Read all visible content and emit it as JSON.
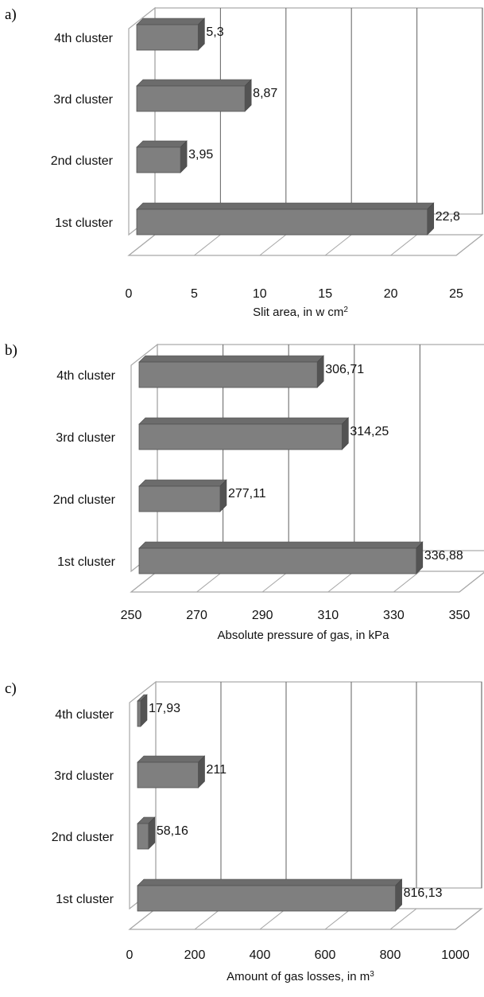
{
  "chart_data": [
    {
      "type": "bar",
      "orientation": "horizontal",
      "panel_label": "a)",
      "categories": [
        "1st cluster",
        "2nd cluster",
        "3rd cluster",
        "4th cluster"
      ],
      "values": [
        22.8,
        3.95,
        8.87,
        5.3
      ],
      "data_labels": [
        "22,8",
        "3,95",
        "8,87",
        "5,3"
      ],
      "xlabel": "Slit area, in w cm",
      "xlabel_sup": "2",
      "xlim": [
        0,
        25
      ],
      "ticks": [
        0,
        5,
        10,
        15,
        20,
        25
      ],
      "tick_labels": [
        "0",
        "5",
        "10",
        "15",
        "20",
        "25"
      ],
      "grid": true,
      "bar_color": "#7f7f7f"
    },
    {
      "type": "bar",
      "orientation": "horizontal",
      "panel_label": "b)",
      "categories": [
        "1st cluster",
        "2nd cluster",
        "3rd cluster",
        "4th cluster"
      ],
      "values": [
        336.88,
        277.11,
        314.25,
        306.71
      ],
      "data_labels": [
        "336,88",
        "277,11",
        "314,25",
        "306,71"
      ],
      "xlabel": "Absolute pressure of gas, in kPa",
      "xlabel_sup": "",
      "xlim": [
        250,
        350
      ],
      "ticks": [
        250,
        270,
        290,
        310,
        330,
        350
      ],
      "tick_labels": [
        "250",
        "270",
        "290",
        "310",
        "330",
        "350"
      ],
      "grid": true,
      "bar_color": "#7f7f7f"
    },
    {
      "type": "bar",
      "orientation": "horizontal",
      "panel_label": "c)",
      "categories": [
        "1st cluster",
        "2nd cluster",
        "3rd cluster",
        "4th cluster"
      ],
      "values": [
        816.13,
        58.16,
        211,
        17.93
      ],
      "data_labels": [
        "816,13",
        "58,16",
        "211",
        "17,93"
      ],
      "xlabel": "Amount of gas losses, in m",
      "xlabel_sup": "3",
      "xlim": [
        0,
        1000
      ],
      "ticks": [
        0,
        200,
        400,
        600,
        800,
        1000
      ],
      "tick_labels": [
        "0",
        "200",
        "400",
        "600",
        "800",
        "1000"
      ],
      "grid": true,
      "bar_color": "#7f7f7f"
    }
  ]
}
